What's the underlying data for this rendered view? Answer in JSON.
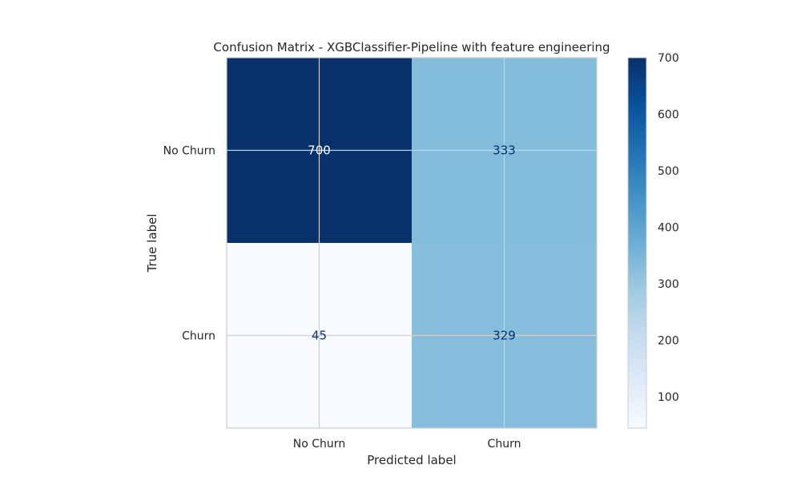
{
  "chart_data": {
    "type": "heatmap",
    "title": "Confusion Matrix - XGBClassifier-Pipeline with feature engineering",
    "xlabel": "Predicted label",
    "ylabel": "True label",
    "x_categories": [
      "No Churn",
      "Churn"
    ],
    "y_categories": [
      "No Churn",
      "Churn"
    ],
    "values": [
      [
        700,
        333
      ],
      [
        45,
        329
      ]
    ],
    "colormap": "Blues",
    "colorbar": {
      "min": 45,
      "max": 700,
      "ticks": [
        100,
        200,
        300,
        400,
        500,
        600,
        700
      ]
    },
    "grid": true
  }
}
